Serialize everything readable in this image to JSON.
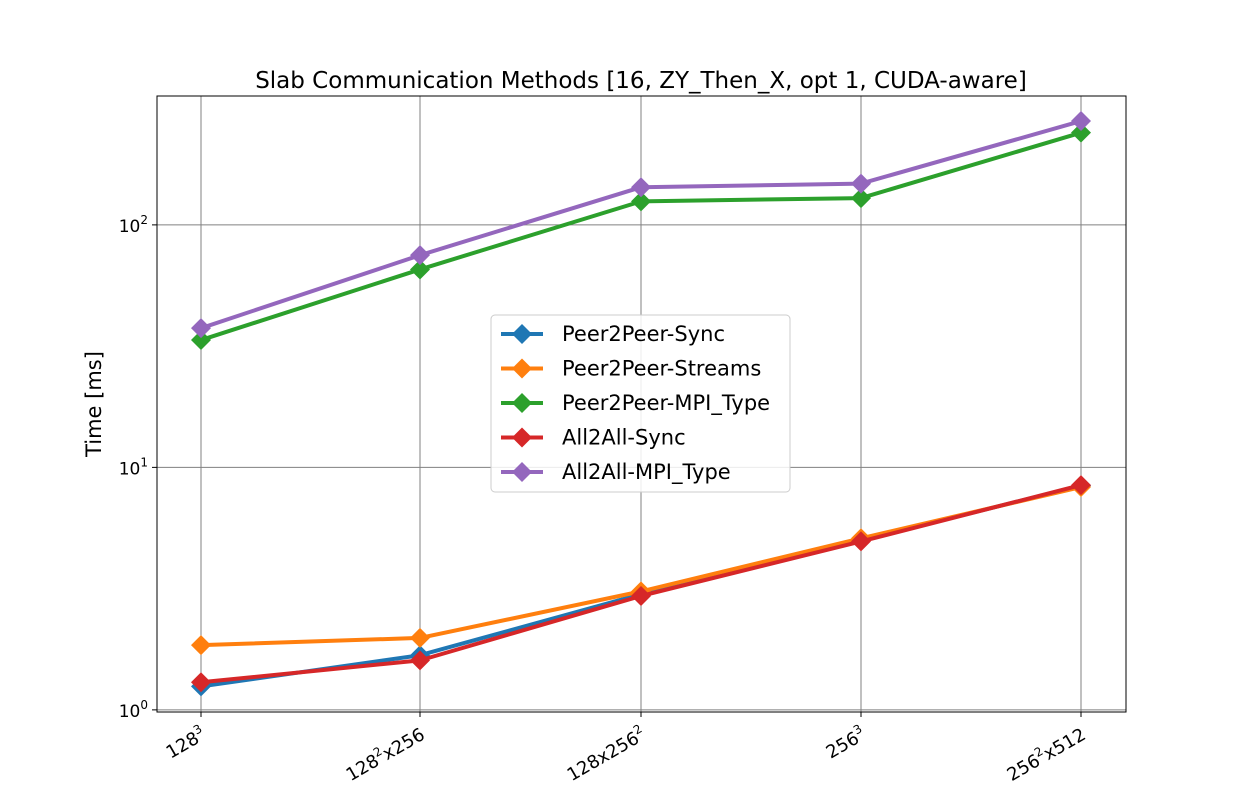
{
  "chart_data": {
    "type": "line",
    "title": "Slab Communication Methods [16, ZY_Then_X, opt 1, CUDA-aware]",
    "xlabel": "",
    "ylabel": "Time [ms]",
    "yscale": "log",
    "ylim": [
      0.98,
      340
    ],
    "grid": true,
    "legend_position": "center",
    "categories": [
      {
        "base": "128",
        "sup": "3",
        "rest": "",
        "sup2": "",
        "rest2": ""
      },
      {
        "base": "128",
        "sup": "2",
        "rest": "x256",
        "sup2": "",
        "rest2": ""
      },
      {
        "base": "128x256",
        "sup": "2",
        "rest": "",
        "sup2": "",
        "rest2": ""
      },
      {
        "base": "256",
        "sup": "3",
        "rest": "",
        "sup2": "",
        "rest2": ""
      },
      {
        "base": "256",
        "sup": "2",
        "rest": "x512",
        "sup2": "",
        "rest2": ""
      }
    ],
    "yticks": [
      {
        "value": 1,
        "base": "10",
        "exp": "0"
      },
      {
        "value": 10,
        "base": "10",
        "exp": "1"
      },
      {
        "value": 100,
        "base": "10",
        "exp": "2"
      }
    ],
    "series": [
      {
        "name": "Peer2Peer-Sync",
        "color": "#1f77b4",
        "values": [
          1.25,
          1.68,
          3.0,
          5.0,
          8.4
        ]
      },
      {
        "name": "Peer2Peer-Streams",
        "color": "#ff7f0e",
        "values": [
          1.85,
          1.98,
          3.08,
          5.1,
          8.3
        ]
      },
      {
        "name": "Peer2Peer-MPI_Type",
        "color": "#2ca02c",
        "values": [
          33.5,
          65.5,
          125,
          129,
          240
        ]
      },
      {
        "name": "All2All-Sync",
        "color": "#d62728",
        "values": [
          1.3,
          1.6,
          2.95,
          4.95,
          8.45
        ]
      },
      {
        "name": "All2All-MPI_Type",
        "color": "#9467bd",
        "values": [
          37.5,
          75,
          143,
          148,
          268
        ]
      }
    ]
  }
}
